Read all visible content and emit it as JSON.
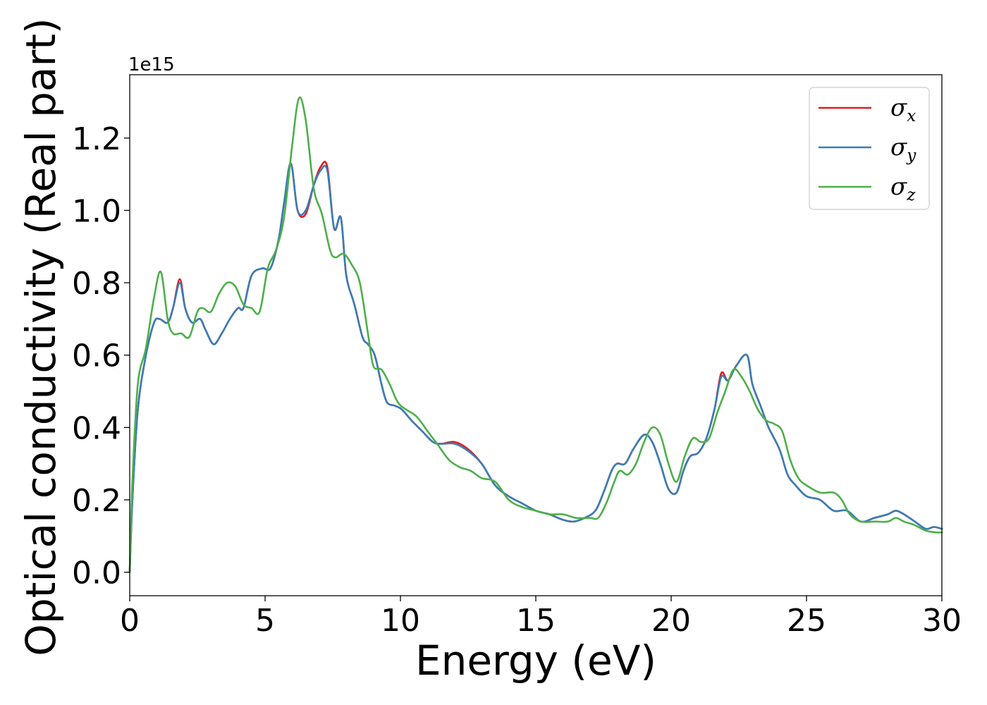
{
  "chart_data": {
    "type": "line",
    "title": "",
    "xlabel": "Energy (eV)",
    "ylabel": "Optical conductivity (Real part)",
    "y_offset_label": "1e15",
    "xlim": [
      0,
      30
    ],
    "ylim": [
      -0.065,
      1.375
    ],
    "x_ticks": [
      0,
      5,
      10,
      15,
      20,
      25,
      30
    ],
    "x_tick_labels": [
      "0",
      "5",
      "10",
      "15",
      "20",
      "25",
      "30"
    ],
    "y_ticks": [
      0.0,
      0.2,
      0.4,
      0.6,
      0.8,
      1.0,
      1.2
    ],
    "y_tick_labels": [
      "0.0",
      "0.2",
      "0.4",
      "0.6",
      "0.8",
      "1.0",
      "1.2"
    ],
    "grid": false,
    "legend_position": "top-right",
    "series": [
      {
        "name": "σ_x",
        "symbol": "σ",
        "subscript": "x",
        "color": "#e41a1c",
        "x": [
          0,
          0.1,
          0.3,
          0.6,
          0.9,
          1.1,
          1.4,
          1.6,
          1.85,
          2.05,
          2.3,
          2.6,
          2.8,
          3.1,
          3.4,
          3.7,
          4.0,
          4.2,
          4.5,
          4.9,
          5.2,
          5.5,
          5.7,
          5.95,
          6.2,
          6.5,
          6.8,
          7.05,
          7.3,
          7.55,
          7.8,
          8.0,
          8.3,
          8.6,
          8.8,
          9.05,
          9.3,
          9.5,
          9.8,
          10.05,
          10.4,
          10.8,
          11.2,
          11.5,
          12.0,
          12.5,
          13.0,
          13.5,
          14.0,
          14.5,
          15.0,
          15.5,
          16.0,
          16.4,
          16.8,
          17.2,
          17.5,
          17.8,
          18.0,
          18.3,
          18.6,
          19.0,
          19.3,
          19.6,
          19.9,
          20.2,
          20.45,
          20.7,
          21.0,
          21.3,
          21.6,
          21.85,
          22.1,
          22.4,
          22.8,
          23.0,
          23.3,
          23.6,
          24.0,
          24.3,
          24.6,
          25.0,
          25.5,
          26.0,
          26.5,
          27.0,
          27.5,
          28.0,
          28.3,
          28.6,
          29.0,
          29.4,
          29.7,
          30.0
        ],
        "y": [
          0.0,
          0.2,
          0.45,
          0.6,
          0.69,
          0.7,
          0.69,
          0.73,
          0.81,
          0.73,
          0.69,
          0.7,
          0.67,
          0.63,
          0.66,
          0.7,
          0.73,
          0.73,
          0.82,
          0.84,
          0.84,
          0.92,
          1.02,
          1.13,
          1.0,
          0.99,
          1.07,
          1.12,
          1.12,
          0.95,
          0.98,
          0.82,
          0.74,
          0.65,
          0.63,
          0.6,
          0.52,
          0.47,
          0.46,
          0.45,
          0.42,
          0.39,
          0.36,
          0.355,
          0.36,
          0.34,
          0.3,
          0.24,
          0.21,
          0.19,
          0.17,
          0.16,
          0.145,
          0.14,
          0.15,
          0.17,
          0.22,
          0.28,
          0.3,
          0.3,
          0.34,
          0.38,
          0.36,
          0.3,
          0.23,
          0.22,
          0.28,
          0.32,
          0.33,
          0.37,
          0.45,
          0.55,
          0.53,
          0.57,
          0.6,
          0.52,
          0.46,
          0.4,
          0.34,
          0.27,
          0.24,
          0.21,
          0.2,
          0.17,
          0.17,
          0.14,
          0.15,
          0.16,
          0.17,
          0.16,
          0.14,
          0.12,
          0.125,
          0.12
        ]
      },
      {
        "name": "σ_y",
        "symbol": "σ",
        "subscript": "y",
        "color": "#377eb8",
        "x": [
          0,
          0.1,
          0.3,
          0.6,
          0.9,
          1.1,
          1.4,
          1.6,
          1.85,
          2.05,
          2.3,
          2.6,
          2.8,
          3.1,
          3.4,
          3.7,
          4.0,
          4.2,
          4.5,
          4.9,
          5.2,
          5.5,
          5.7,
          5.95,
          6.2,
          6.5,
          6.8,
          7.05,
          7.3,
          7.55,
          7.8,
          8.0,
          8.3,
          8.6,
          8.8,
          9.05,
          9.3,
          9.5,
          9.8,
          10.05,
          10.4,
          10.8,
          11.2,
          11.5,
          12.0,
          12.5,
          13.0,
          13.5,
          14.0,
          14.5,
          15.0,
          15.5,
          16.0,
          16.4,
          16.8,
          17.2,
          17.5,
          17.8,
          18.0,
          18.3,
          18.6,
          19.0,
          19.3,
          19.6,
          19.9,
          20.2,
          20.45,
          20.7,
          21.0,
          21.3,
          21.6,
          21.85,
          22.1,
          22.4,
          22.8,
          23.0,
          23.3,
          23.6,
          24.0,
          24.3,
          24.6,
          25.0,
          25.5,
          26.0,
          26.5,
          27.0,
          27.5,
          28.0,
          28.3,
          28.6,
          29.0,
          29.4,
          29.7,
          30.0
        ],
        "y": [
          0.0,
          0.2,
          0.45,
          0.6,
          0.69,
          0.7,
          0.69,
          0.73,
          0.8,
          0.73,
          0.69,
          0.7,
          0.67,
          0.63,
          0.66,
          0.7,
          0.73,
          0.73,
          0.82,
          0.84,
          0.84,
          0.92,
          1.02,
          1.13,
          1.0,
          1.0,
          1.07,
          1.11,
          1.11,
          0.95,
          0.98,
          0.82,
          0.74,
          0.65,
          0.63,
          0.6,
          0.52,
          0.47,
          0.46,
          0.45,
          0.42,
          0.39,
          0.36,
          0.355,
          0.355,
          0.335,
          0.3,
          0.24,
          0.21,
          0.19,
          0.17,
          0.16,
          0.145,
          0.14,
          0.15,
          0.17,
          0.22,
          0.28,
          0.3,
          0.3,
          0.34,
          0.38,
          0.36,
          0.3,
          0.23,
          0.22,
          0.28,
          0.32,
          0.33,
          0.37,
          0.45,
          0.54,
          0.53,
          0.57,
          0.6,
          0.52,
          0.46,
          0.4,
          0.34,
          0.27,
          0.24,
          0.21,
          0.2,
          0.17,
          0.17,
          0.14,
          0.15,
          0.16,
          0.17,
          0.16,
          0.14,
          0.12,
          0.125,
          0.12
        ]
      },
      {
        "name": "σ_z",
        "symbol": "σ",
        "subscript": "z",
        "color": "#4daf4a",
        "x": [
          0,
          0.1,
          0.3,
          0.6,
          0.9,
          1.15,
          1.4,
          1.6,
          1.9,
          2.2,
          2.5,
          2.7,
          3.0,
          3.3,
          3.6,
          3.9,
          4.2,
          4.5,
          4.8,
          5.1,
          5.4,
          5.7,
          6.0,
          6.25,
          6.5,
          6.8,
          7.1,
          7.4,
          7.6,
          7.9,
          8.2,
          8.5,
          8.8,
          9.0,
          9.3,
          9.6,
          9.9,
          10.2,
          10.6,
          11.0,
          11.4,
          11.8,
          12.2,
          12.6,
          13.0,
          13.5,
          14.0,
          14.5,
          15.0,
          15.5,
          16.0,
          16.5,
          17.0,
          17.3,
          17.6,
          17.9,
          18.1,
          18.4,
          18.7,
          19.0,
          19.3,
          19.6,
          19.9,
          20.2,
          20.5,
          20.8,
          21.1,
          21.4,
          21.7,
          22.0,
          22.3,
          22.6,
          22.9,
          23.2,
          23.5,
          23.8,
          24.1,
          24.4,
          24.7,
          25.0,
          25.5,
          26.0,
          26.3,
          26.6,
          27.0,
          27.5,
          28.0,
          28.3,
          28.6,
          29.0,
          29.4,
          29.8,
          30.0
        ],
        "y": [
          0.0,
          0.25,
          0.52,
          0.62,
          0.76,
          0.83,
          0.7,
          0.66,
          0.66,
          0.65,
          0.72,
          0.73,
          0.72,
          0.77,
          0.8,
          0.79,
          0.74,
          0.73,
          0.72,
          0.84,
          0.89,
          0.98,
          1.18,
          1.31,
          1.25,
          1.06,
          0.99,
          0.89,
          0.87,
          0.88,
          0.85,
          0.8,
          0.66,
          0.57,
          0.56,
          0.52,
          0.47,
          0.45,
          0.43,
          0.39,
          0.35,
          0.31,
          0.29,
          0.28,
          0.26,
          0.25,
          0.2,
          0.18,
          0.17,
          0.16,
          0.16,
          0.15,
          0.15,
          0.15,
          0.19,
          0.25,
          0.28,
          0.27,
          0.3,
          0.36,
          0.4,
          0.38,
          0.3,
          0.25,
          0.32,
          0.37,
          0.36,
          0.37,
          0.44,
          0.5,
          0.56,
          0.54,
          0.5,
          0.45,
          0.42,
          0.41,
          0.39,
          0.31,
          0.26,
          0.24,
          0.22,
          0.22,
          0.2,
          0.16,
          0.14,
          0.14,
          0.14,
          0.15,
          0.14,
          0.13,
          0.115,
          0.11,
          0.11
        ]
      }
    ]
  }
}
